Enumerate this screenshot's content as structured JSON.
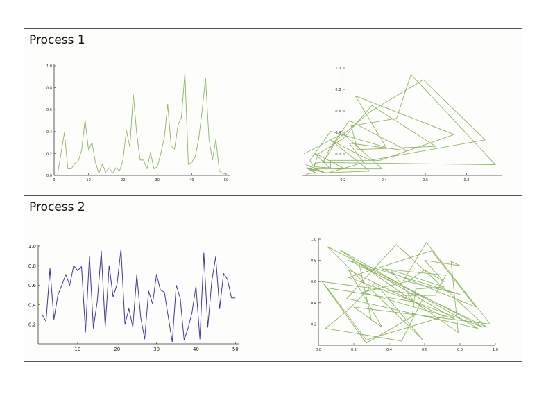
{
  "labels": [
    "Process 1",
    "",
    "Process 2",
    ""
  ],
  "colors": {
    "green": "#8cb464",
    "blue": "#3a3a9a",
    "axis": "#333333",
    "border": "#555555"
  },
  "chart_data": [
    {
      "type": "line",
      "title": "",
      "xlim": [
        0,
        51
      ],
      "ylim": [
        0,
        1.0
      ],
      "xticks": [
        0,
        10,
        20,
        30,
        40,
        50
      ],
      "yticks": [
        0.0,
        0.2,
        0.4,
        0.6,
        0.8,
        1.0
      ],
      "series": [
        {
          "x": [
            1,
            2,
            3,
            4,
            5,
            6,
            7,
            8,
            9,
            10,
            11,
            12,
            13,
            14,
            15,
            16,
            17,
            18,
            19,
            20,
            21,
            22,
            23,
            24,
            25,
            26,
            27,
            28,
            29,
            30,
            31,
            32,
            33,
            34,
            35,
            36,
            37,
            38,
            39,
            40,
            41,
            42,
            43,
            44,
            45,
            46,
            47,
            48,
            49,
            50
          ],
          "values": [
            0.01,
            0.2,
            0.39,
            0.06,
            0.06,
            0.11,
            0.13,
            0.23,
            0.51,
            0.23,
            0.3,
            0.12,
            0.02,
            0.1,
            0.03,
            0.07,
            0.02,
            0.07,
            0.04,
            0.14,
            0.41,
            0.26,
            0.74,
            0.38,
            0.14,
            0.14,
            0.06,
            0.21,
            0.06,
            0.08,
            0.2,
            0.34,
            0.65,
            0.27,
            0.24,
            0.46,
            0.53,
            0.94,
            0.1,
            0.12,
            0.17,
            0.33,
            0.59,
            0.89,
            0.33,
            0.14,
            0.33,
            0.04,
            0.02,
            0.01
          ]
        }
      ]
    },
    {
      "type": "line",
      "title": "",
      "xlim": [
        0,
        0.97
      ],
      "ylim": [
        0,
        1.0
      ],
      "xticks": [
        0.2,
        0.4,
        0.6,
        0.8
      ],
      "yticks": [
        0.2,
        0.4,
        0.6,
        0.8,
        1.0
      ],
      "series": [
        {
          "x": [
            0.01,
            0.2,
            0.39,
            0.06,
            0.06,
            0.11,
            0.13,
            0.23,
            0.51,
            0.23,
            0.3,
            0.12,
            0.02,
            0.1,
            0.03,
            0.07,
            0.02,
            0.07,
            0.04,
            0.14,
            0.41,
            0.26,
            0.74,
            0.38,
            0.14,
            0.14,
            0.06,
            0.21,
            0.06,
            0.08,
            0.2,
            0.34,
            0.65,
            0.27,
            0.24,
            0.46,
            0.53,
            0.94,
            0.1,
            0.12,
            0.17,
            0.33,
            0.59,
            0.89,
            0.33,
            0.14,
            0.33,
            0.04,
            0.02
          ],
          "values": [
            0.2,
            0.39,
            0.06,
            0.06,
            0.11,
            0.13,
            0.23,
            0.51,
            0.23,
            0.3,
            0.12,
            0.02,
            0.1,
            0.03,
            0.07,
            0.02,
            0.07,
            0.04,
            0.14,
            0.41,
            0.26,
            0.74,
            0.38,
            0.14,
            0.14,
            0.06,
            0.21,
            0.06,
            0.08,
            0.2,
            0.34,
            0.65,
            0.27,
            0.24,
            0.46,
            0.53,
            0.94,
            0.1,
            0.12,
            0.17,
            0.33,
            0.59,
            0.89,
            0.33,
            0.14,
            0.33,
            0.04,
            0.02,
            0.01
          ]
        }
      ]
    },
    {
      "type": "line",
      "title": "",
      "xlim": [
        0,
        51
      ],
      "ylim": [
        0,
        1.0
      ],
      "xticks": [
        10,
        20,
        30,
        40,
        50
      ],
      "yticks": [
        0.2,
        0.4,
        0.6,
        0.8,
        1.0
      ],
      "series": [
        {
          "x": [
            1,
            2,
            3,
            4,
            5,
            6,
            7,
            8,
            9,
            10,
            11,
            12,
            13,
            14,
            15,
            16,
            17,
            18,
            19,
            20,
            21,
            22,
            23,
            24,
            25,
            26,
            27,
            28,
            29,
            30,
            31,
            32,
            33,
            34,
            35,
            36,
            37,
            38,
            39,
            40,
            41,
            42,
            43,
            44,
            45,
            46,
            47,
            48,
            49,
            50
          ],
          "values": [
            0.3,
            0.23,
            0.77,
            0.25,
            0.5,
            0.6,
            0.71,
            0.6,
            0.8,
            0.75,
            0.79,
            0.12,
            0.9,
            0.16,
            0.44,
            0.95,
            0.17,
            0.8,
            0.48,
            0.61,
            0.97,
            0.2,
            0.36,
            0.17,
            0.71,
            0.27,
            0.05,
            0.54,
            0.41,
            0.71,
            0.55,
            0.53,
            0.27,
            0.02,
            0.6,
            0.47,
            0.04,
            0.16,
            0.32,
            0.59,
            0.05,
            0.93,
            0.17,
            0.64,
            0.89,
            0.36,
            0.72,
            0.66,
            0.47,
            0.47
          ]
        }
      ]
    },
    {
      "type": "line",
      "title": "",
      "xlim": [
        0,
        1.0
      ],
      "ylim": [
        0,
        1.0
      ],
      "xticks": [
        0.0,
        0.2,
        0.4,
        0.6,
        0.8,
        1.0
      ],
      "yticks": [
        0.2,
        0.4,
        0.6,
        0.8,
        1.0
      ],
      "series": [
        {
          "x": [
            0.3,
            0.23,
            0.77,
            0.25,
            0.5,
            0.6,
            0.71,
            0.6,
            0.8,
            0.75,
            0.79,
            0.12,
            0.9,
            0.16,
            0.44,
            0.95,
            0.17,
            0.8,
            0.48,
            0.61,
            0.97,
            0.2,
            0.36,
            0.17,
            0.71,
            0.27,
            0.05,
            0.54,
            0.41,
            0.71,
            0.55,
            0.53,
            0.27,
            0.02,
            0.6,
            0.47,
            0.04,
            0.16,
            0.32,
            0.59,
            0.05,
            0.93,
            0.17,
            0.64,
            0.89,
            0.36,
            0.72,
            0.66,
            0.47
          ],
          "values": [
            0.23,
            0.77,
            0.25,
            0.5,
            0.6,
            0.71,
            0.6,
            0.8,
            0.75,
            0.79,
            0.12,
            0.9,
            0.16,
            0.44,
            0.95,
            0.17,
            0.8,
            0.48,
            0.61,
            0.97,
            0.2,
            0.36,
            0.17,
            0.71,
            0.27,
            0.05,
            0.54,
            0.41,
            0.71,
            0.55,
            0.53,
            0.27,
            0.02,
            0.6,
            0.47,
            0.04,
            0.16,
            0.32,
            0.59,
            0.05,
            0.93,
            0.17,
            0.64,
            0.89,
            0.36,
            0.72,
            0.66,
            0.47,
            0.47
          ]
        }
      ]
    }
  ]
}
